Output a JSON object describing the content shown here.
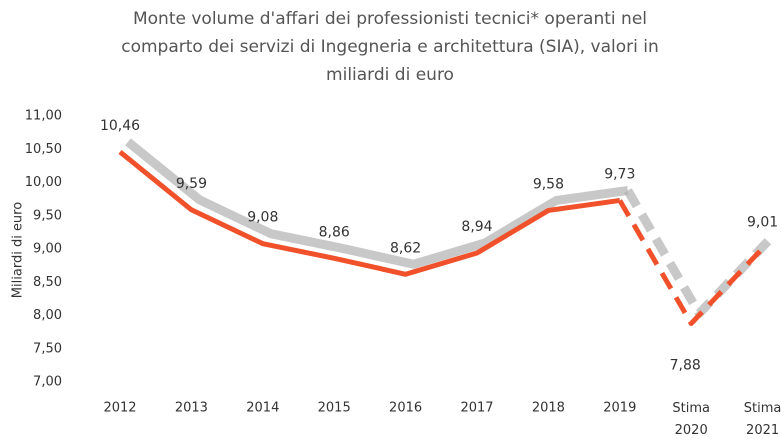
{
  "chart_data": {
    "type": "line",
    "title": [
      "Monte volume d'affari dei professionisti tecnici* operanti nel",
      "comparto dei servizi di Ingegneria e architettura (SIA), valori in",
      "miliardi di euro"
    ],
    "y_label": "Miliardi di euro",
    "categories": [
      "2012",
      "2013",
      "2014",
      "2015",
      "2016",
      "2017",
      "2018",
      "2019",
      "Stima 2020",
      "Stima 2021"
    ],
    "series": [
      {
        "color": "#f0512a",
        "shadow_color": "#b5b5b5",
        "dashed_from": 7,
        "values": [
          10.46,
          9.59,
          9.08,
          8.86,
          8.62,
          8.94,
          9.58,
          9.73,
          7.88,
          9.01
        ],
        "value_labels": [
          "10,46",
          "9,59",
          "9,08",
          "8,86",
          "8,62",
          "8,94",
          "9,58",
          "9,73",
          "7,88",
          "9,01"
        ]
      }
    ],
    "ylim": [
      7,
      11
    ],
    "yticks": [
      {
        "value": 7,
        "label": "7,00"
      },
      {
        "value": 7.5,
        "label": "7,50"
      },
      {
        "value": 8,
        "label": "8,00"
      },
      {
        "value": 8.5,
        "label": "8,50"
      },
      {
        "value": 9,
        "label": "9,00"
      },
      {
        "value": 9.5,
        "label": "9,50"
      },
      {
        "value": 10,
        "label": "10,00"
      },
      {
        "value": 10.5,
        "label": "10,50"
      },
      {
        "value": 11,
        "label": "11,00"
      }
    ],
    "grid": false
  }
}
